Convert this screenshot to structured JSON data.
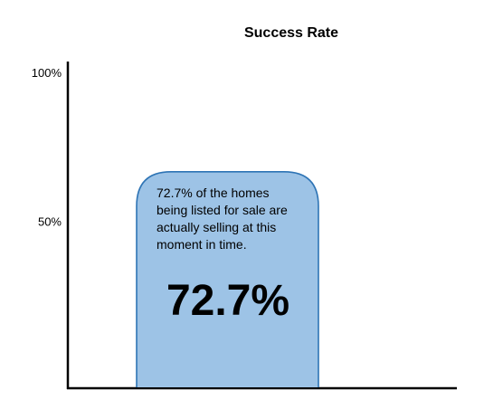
{
  "chart_data": {
    "type": "bar",
    "title": "Success Rate",
    "xlabel": "",
    "ylabel": "",
    "ylim": [
      0,
      100
    ],
    "y_ticks": [
      {
        "value": 100,
        "label": "100%"
      },
      {
        "value": 50,
        "label": "50%"
      }
    ],
    "categories": [
      ""
    ],
    "values": [
      72.7
    ],
    "value_label": "72.7%",
    "annotation_lines": [
      "72.7% of the homes",
      "being listed for sale are",
      "actually selling at this",
      "moment in time."
    ],
    "grid": false,
    "legend": "none",
    "colors": {
      "bar_fill": "#9DC3E6",
      "bar_stroke": "#2E74B5",
      "axis": "#000000",
      "text": "#000000"
    }
  }
}
